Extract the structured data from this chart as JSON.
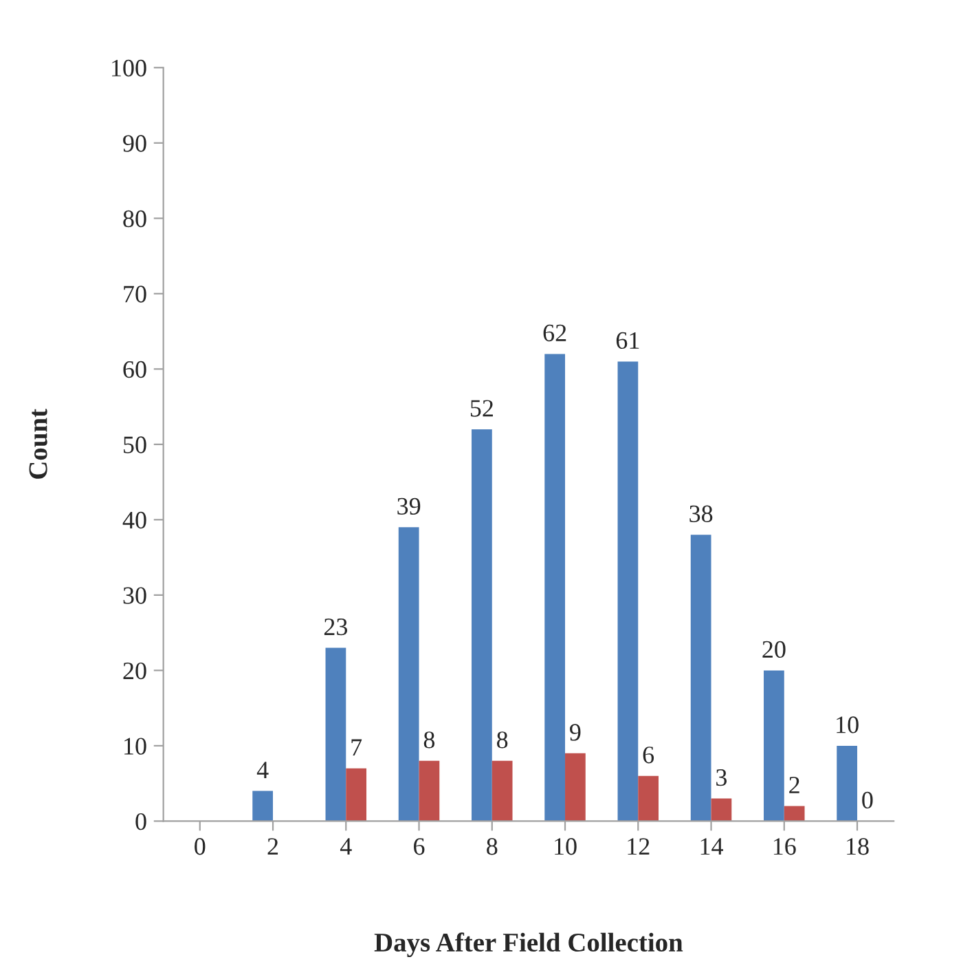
{
  "chart_data": {
    "type": "bar",
    "xlabel": "Days After Field Collection",
    "ylabel": "Count",
    "categories": [
      "0",
      "2",
      "4",
      "6",
      "8",
      "10",
      "12",
      "14",
      "16",
      "18"
    ],
    "series": [
      {
        "color": "#4f81bd",
        "values": [
          null,
          4,
          23,
          39,
          52,
          62,
          61,
          38,
          20,
          10
        ],
        "value_labels": [
          null,
          "4",
          "23",
          "39",
          "52",
          "62",
          "61",
          "38",
          "20",
          "10"
        ]
      },
      {
        "color": "#c0504d",
        "values": [
          null,
          null,
          7,
          8,
          8,
          9,
          6,
          3,
          2,
          0
        ],
        "value_labels": [
          null,
          null,
          "7",
          "8",
          "8",
          "9",
          "6",
          "3",
          "2",
          "0"
        ]
      }
    ],
    "ylim": [
      0,
      100
    ],
    "yticks": [
      0,
      10,
      20,
      30,
      40,
      50,
      60,
      70,
      80,
      90,
      100
    ],
    "grid": false
  }
}
